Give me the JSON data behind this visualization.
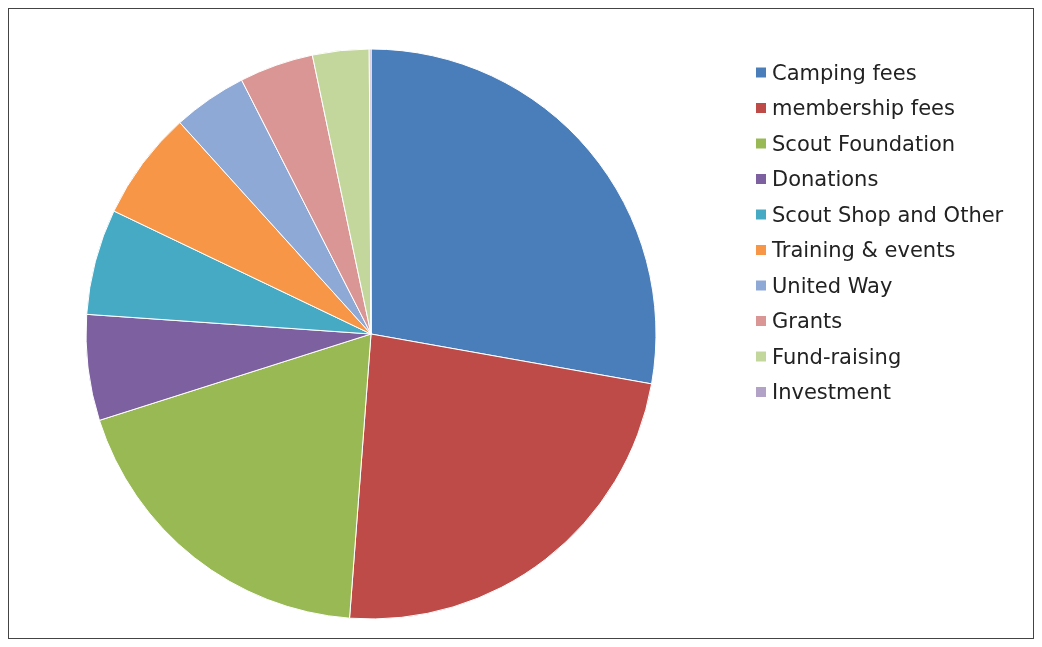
{
  "chart_data": {
    "type": "pie",
    "categories": [
      "Camping fees",
      "membership fees",
      "Scout Foundation",
      "Donations",
      "Scout Shop and Other",
      "Training & events",
      "United Way",
      "Grants",
      "Fund-raising",
      "Investment"
    ],
    "values": [
      27.8,
      23.4,
      18.9,
      6.0,
      6.0,
      6.2,
      4.2,
      4.2,
      3.2,
      0.1
    ],
    "colors": [
      "#4a7ebb",
      "#be4b48",
      "#98b954",
      "#7d60a0",
      "#46aac5",
      "#f79646",
      "#8fa9d6",
      "#d99694",
      "#c3d69b",
      "#b3a2c7"
    ],
    "legend": "right"
  }
}
